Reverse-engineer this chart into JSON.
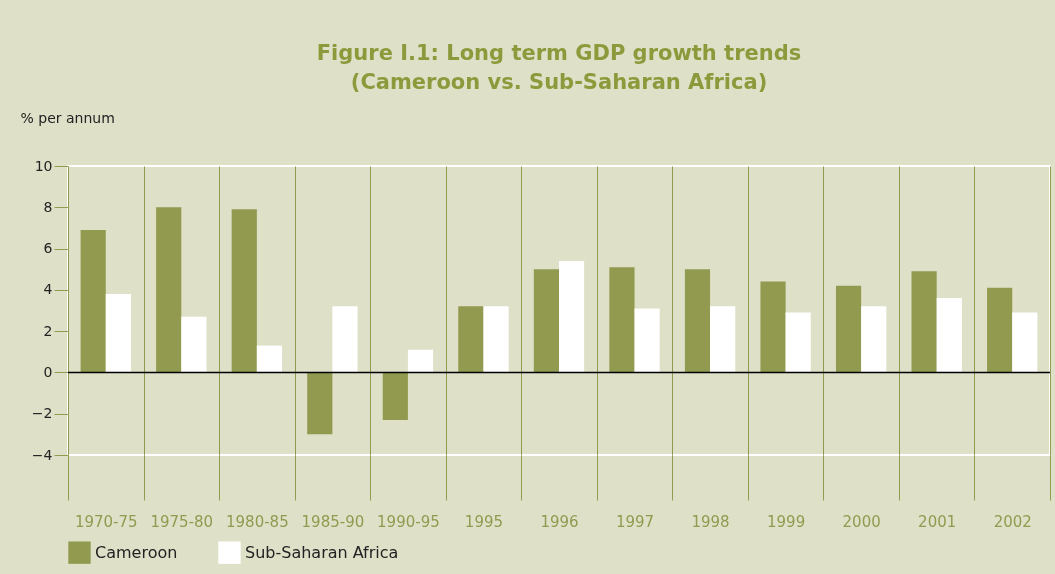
{
  "chart_data": {
    "type": "bar",
    "title": "Figure I.1: Long term GDP growth trends",
    "subtitle": "(Cameroon vs. Sub-Saharan Africa)",
    "ylabel": "% per annum",
    "categories": [
      "1970-75",
      "1975-80",
      "1980-85",
      "1985-90",
      "1990-95",
      "1995",
      "1996",
      "1997",
      "1998",
      "1999",
      "2000",
      "2001",
      "2002"
    ],
    "series": [
      {
        "name": "Cameroon",
        "color": "#919a4f",
        "values": [
          6.9,
          8.0,
          7.9,
          -3.0,
          -2.3,
          3.2,
          5.0,
          5.1,
          5.0,
          4.4,
          4.2,
          4.9,
          4.1
        ]
      },
      {
        "name": "Sub-Saharan Africa",
        "color": "#ffffff",
        "values": [
          3.8,
          2.7,
          1.3,
          3.2,
          1.1,
          3.2,
          5.4,
          3.1,
          3.2,
          2.9,
          3.2,
          3.6,
          2.9
        ]
      }
    ],
    "ylim": [
      -4,
      10
    ],
    "yticks": [
      -4,
      -2,
      0,
      2,
      4,
      6,
      8,
      10
    ],
    "grid": "x",
    "legend": "bottom",
    "ref_lines": [
      {
        "axis": "y",
        "value": 0,
        "color": "#000000"
      }
    ]
  }
}
